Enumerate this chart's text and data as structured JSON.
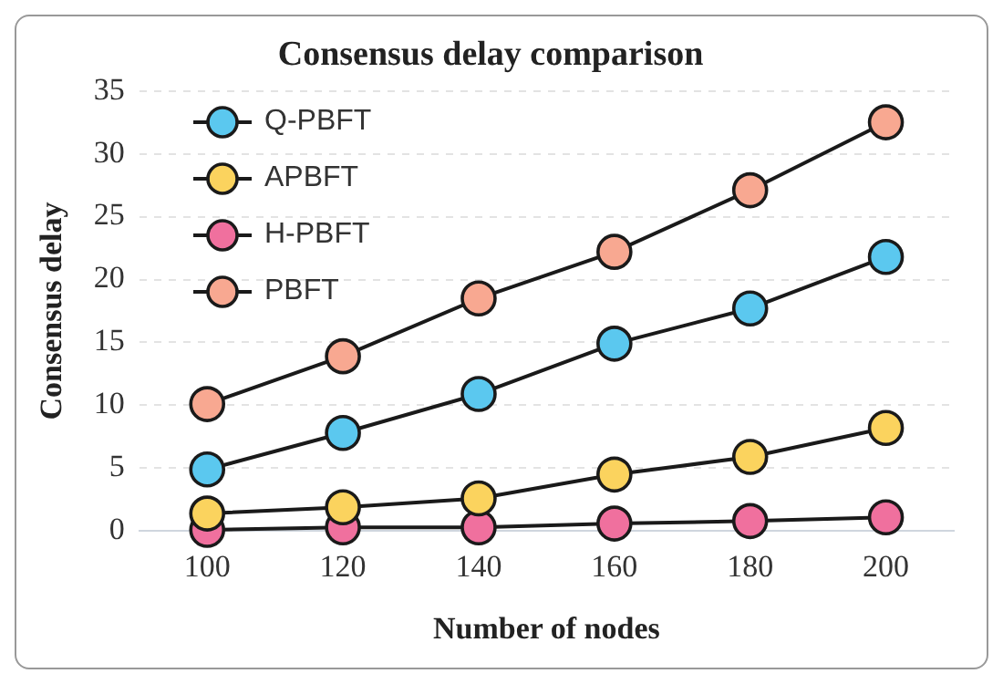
{
  "chart_data": {
    "type": "line",
    "title": "Consensus delay comparison",
    "xlabel": "Number of nodes",
    "ylabel": "Consensus delay",
    "categories": [
      "100",
      "120",
      "140",
      "160",
      "180",
      "200"
    ],
    "series": [
      {
        "name": "Q-PBFT",
        "color": "#5bc8ef",
        "values": [
          4.9,
          7.8,
          10.9,
          14.9,
          17.7,
          21.8
        ]
      },
      {
        "name": "APBFT",
        "color": "#fbd35e",
        "values": [
          1.4,
          1.9,
          2.6,
          4.5,
          5.9,
          8.2
        ]
      },
      {
        "name": "H-PBFT",
        "color": "#f0709e",
        "values": [
          0.1,
          0.3,
          0.3,
          0.6,
          0.8,
          1.1
        ]
      },
      {
        "name": "PBFT",
        "color": "#f8a891",
        "values": [
          10.1,
          13.9,
          18.5,
          22.2,
          27.1,
          32.5
        ]
      }
    ],
    "ylim": [
      0,
      35
    ],
    "yticks": [
      0,
      5,
      10,
      15,
      20,
      25,
      30,
      35
    ],
    "grid": "y",
    "legend": "top left",
    "marker": "circle",
    "line_style": "solid"
  }
}
